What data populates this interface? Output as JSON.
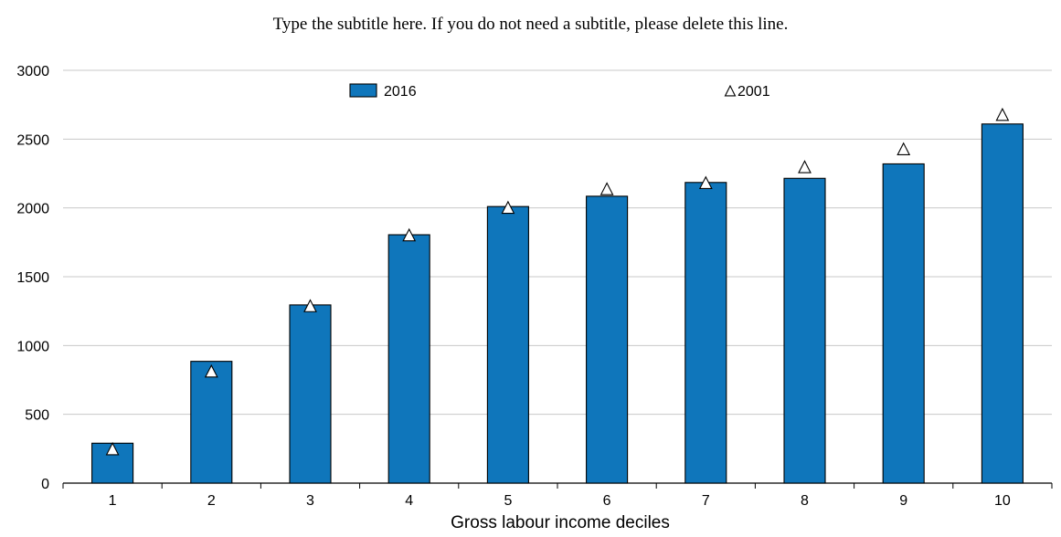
{
  "chart_data": {
    "type": "bar",
    "subtitle": "Type the subtitle here. If you do not need a subtitle, please delete this line.",
    "xlabel": "Gross labour income deciles",
    "ylabel": "",
    "categories": [
      "1",
      "2",
      "3",
      "4",
      "5",
      "6",
      "7",
      "8",
      "9",
      "10"
    ],
    "ylim": [
      0,
      3000
    ],
    "yticks": [
      0,
      500,
      1000,
      1500,
      2000,
      2500,
      3000
    ],
    "grid": true,
    "legend_position": "top",
    "series": [
      {
        "name": "2016",
        "kind": "bar",
        "color": "#0f76bb",
        "values": [
          290,
          885,
          1295,
          1805,
          2010,
          2085,
          2185,
          2215,
          2320,
          2610
        ]
      },
      {
        "name": "2001",
        "kind": "marker",
        "marker": "triangle",
        "color": "#ffffff",
        "values": [
          245,
          810,
          1285,
          1800,
          2000,
          2135,
          2180,
          2295,
          2425,
          2675
        ]
      }
    ]
  }
}
